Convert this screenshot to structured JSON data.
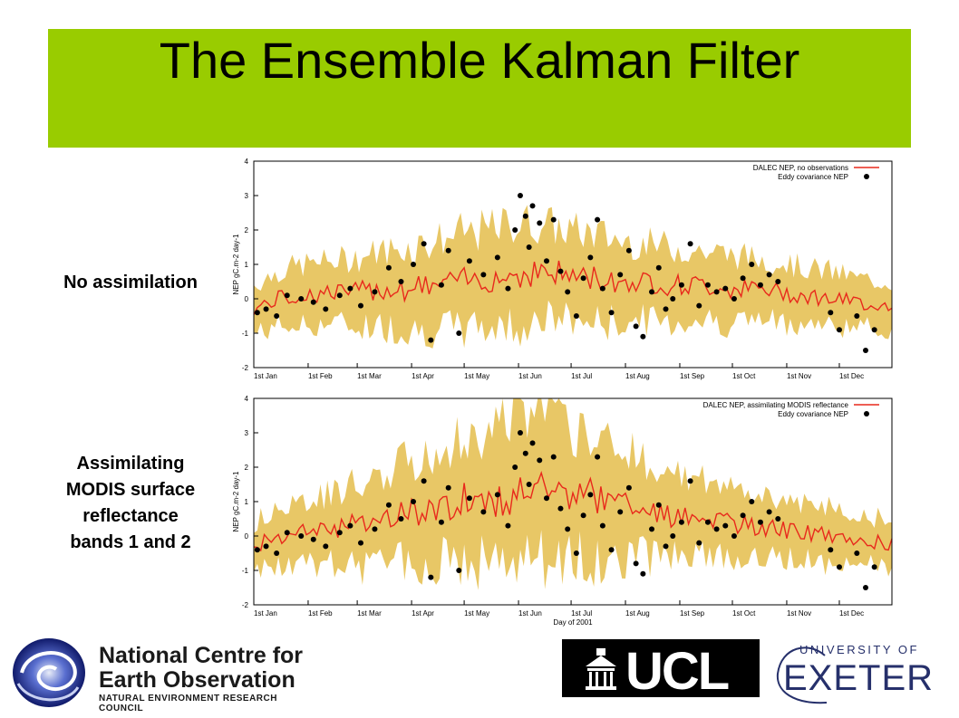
{
  "slide": {
    "title": "The Ensemble Kalman Filter",
    "label_top": "No assimilation",
    "label_bottom_lines": [
      "Assimilating",
      "MODIS surface",
      "reflectance",
      "bands 1 and 2"
    ]
  },
  "chart_data": [
    {
      "type": "line",
      "title": "",
      "ylabel": "NEP gC.m-2 day-1",
      "xlabel": "",
      "ylim": [
        -2,
        4
      ],
      "yticks": [
        "4",
        "3",
        "2",
        "1",
        "0",
        "-1",
        "-2"
      ],
      "xticks": [
        "1st Jan",
        "1st Feb",
        "1st Mar",
        "1st Apr",
        "1st May",
        "1st Jun",
        "1st Jul",
        "1st Aug",
        "1st Sep",
        "1st Oct",
        "1st Nov",
        "1st Dec"
      ],
      "legend": [
        "DALEC NEP, no observations",
        "Eddy covariance NEP"
      ],
      "legend_position": "top-right",
      "colors": {
        "line": "#e8291c",
        "band": "#e8c766",
        "points": "#000000"
      },
      "series": [
        {
          "name": "DALEC NEP, no observations",
          "days": [
            1,
            15,
            30,
            45,
            60,
            75,
            90,
            105,
            120,
            135,
            150,
            165,
            180,
            195,
            210,
            225,
            240,
            255,
            270,
            285,
            300,
            315,
            330,
            345,
            360
          ],
          "values": [
            -0.3,
            0.0,
            0.1,
            0.2,
            0.2,
            0.3,
            0.3,
            0.4,
            0.5,
            0.6,
            0.7,
            0.8,
            0.7,
            0.6,
            0.5,
            0.5,
            0.4,
            0.4,
            0.3,
            0.3,
            0.2,
            0.1,
            0.0,
            -0.1,
            -0.2
          ],
          "band": [
            0.7,
            0.8,
            0.9,
            0.9,
            1.0,
            1.1,
            1.2,
            1.3,
            1.4,
            1.4,
            1.5,
            1.4,
            1.3,
            1.3,
            1.2,
            1.1,
            1.1,
            1.0,
            1.0,
            0.9,
            0.9,
            0.8,
            0.8,
            0.7,
            0.7
          ]
        },
        {
          "name": "Eddy covariance NEP",
          "points": [
            [
              3,
              -0.4
            ],
            [
              8,
              -0.3
            ],
            [
              14,
              -0.5
            ],
            [
              20,
              0.1
            ],
            [
              28,
              0.0
            ],
            [
              35,
              -0.1
            ],
            [
              42,
              -0.3
            ],
            [
              50,
              0.1
            ],
            [
              56,
              0.3
            ],
            [
              62,
              -0.2
            ],
            [
              70,
              0.2
            ],
            [
              78,
              0.9
            ],
            [
              85,
              0.5
            ],
            [
              92,
              1.0
            ],
            [
              98,
              1.6
            ],
            [
              102,
              -1.2
            ],
            [
              108,
              0.4
            ],
            [
              112,
              1.4
            ],
            [
              118,
              -1.0
            ],
            [
              124,
              1.1
            ],
            [
              132,
              0.7
            ],
            [
              140,
              1.2
            ],
            [
              146,
              0.3
            ],
            [
              150,
              2.0
            ],
            [
              153,
              3.0
            ],
            [
              156,
              2.4
            ],
            [
              158,
              1.5
            ],
            [
              160,
              2.7
            ],
            [
              164,
              2.2
            ],
            [
              168,
              1.1
            ],
            [
              172,
              2.3
            ],
            [
              176,
              0.8
            ],
            [
              180,
              0.2
            ],
            [
              185,
              -0.5
            ],
            [
              189,
              0.6
            ],
            [
              193,
              1.2
            ],
            [
              197,
              2.3
            ],
            [
              200,
              0.3
            ],
            [
              205,
              -0.4
            ],
            [
              210,
              0.7
            ],
            [
              215,
              1.4
            ],
            [
              219,
              -0.8
            ],
            [
              223,
              -1.1
            ],
            [
              228,
              0.2
            ],
            [
              232,
              0.9
            ],
            [
              236,
              -0.3
            ],
            [
              240,
              0.0
            ],
            [
              245,
              0.4
            ],
            [
              250,
              1.6
            ],
            [
              255,
              -0.2
            ],
            [
              260,
              0.4
            ],
            [
              265,
              0.2
            ],
            [
              270,
              0.3
            ],
            [
              275,
              0.0
            ],
            [
              280,
              0.6
            ],
            [
              285,
              1.0
            ],
            [
              290,
              0.4
            ],
            [
              295,
              0.7
            ],
            [
              300,
              0.5
            ],
            [
              330,
              -0.4
            ],
            [
              335,
              -0.9
            ],
            [
              345,
              -0.5
            ],
            [
              350,
              -1.5
            ],
            [
              355,
              -0.9
            ]
          ]
        }
      ]
    },
    {
      "type": "line",
      "title": "",
      "ylabel": "NEP gC.m-2 day-1",
      "xlabel": "Day of 2001",
      "ylim": [
        -2,
        4
      ],
      "yticks": [
        "4",
        "3",
        "2",
        "1",
        "0",
        "-1",
        "-2"
      ],
      "xticks": [
        "1st Jan",
        "1st Feb",
        "1st Mar",
        "1st Apr",
        "1st May",
        "1st Jun",
        "1st Jul",
        "1st Aug",
        "1st Sep",
        "1st Oct",
        "1st Nov",
        "1st Dec"
      ],
      "legend": [
        "DALEC NEP, assimilating MODIS reflectance",
        "Eddy covariance NEP"
      ],
      "legend_position": "top-right",
      "colors": {
        "line": "#e8291c",
        "band": "#e8c766",
        "points": "#000000"
      },
      "series": [
        {
          "name": "DALEC NEP, assimilating MODIS reflectance",
          "days": [
            1,
            15,
            30,
            45,
            60,
            75,
            90,
            105,
            120,
            135,
            150,
            165,
            180,
            195,
            210,
            225,
            240,
            255,
            270,
            285,
            300,
            315,
            330,
            345,
            360
          ],
          "values": [
            -0.3,
            0.0,
            0.1,
            0.2,
            0.3,
            0.5,
            0.7,
            0.9,
            1.0,
            1.1,
            1.3,
            1.5,
            1.2,
            1.2,
            1.0,
            0.8,
            0.6,
            0.5,
            0.4,
            0.3,
            0.2,
            0.1,
            0.0,
            -0.1,
            -0.2
          ],
          "band": [
            0.7,
            0.8,
            0.9,
            1.0,
            1.2,
            1.3,
            1.5,
            1.6,
            1.8,
            1.9,
            2.2,
            2.3,
            1.9,
            1.9,
            1.6,
            1.4,
            1.2,
            1.1,
            1.0,
            0.9,
            0.9,
            0.8,
            0.8,
            0.7,
            0.7
          ]
        },
        {
          "name": "Eddy covariance NEP",
          "points": [
            [
              3,
              -0.4
            ],
            [
              8,
              -0.3
            ],
            [
              14,
              -0.5
            ],
            [
              20,
              0.1
            ],
            [
              28,
              0.0
            ],
            [
              35,
              -0.1
            ],
            [
              42,
              -0.3
            ],
            [
              50,
              0.1
            ],
            [
              56,
              0.3
            ],
            [
              62,
              -0.2
            ],
            [
              70,
              0.2
            ],
            [
              78,
              0.9
            ],
            [
              85,
              0.5
            ],
            [
              92,
              1.0
            ],
            [
              98,
              1.6
            ],
            [
              102,
              -1.2
            ],
            [
              108,
              0.4
            ],
            [
              112,
              1.4
            ],
            [
              118,
              -1.0
            ],
            [
              124,
              1.1
            ],
            [
              132,
              0.7
            ],
            [
              140,
              1.2
            ],
            [
              146,
              0.3
            ],
            [
              150,
              2.0
            ],
            [
              153,
              3.0
            ],
            [
              156,
              2.4
            ],
            [
              158,
              1.5
            ],
            [
              160,
              2.7
            ],
            [
              164,
              2.2
            ],
            [
              168,
              1.1
            ],
            [
              172,
              2.3
            ],
            [
              176,
              0.8
            ],
            [
              180,
              0.2
            ],
            [
              185,
              -0.5
            ],
            [
              189,
              0.6
            ],
            [
              193,
              1.2
            ],
            [
              197,
              2.3
            ],
            [
              200,
              0.3
            ],
            [
              205,
              -0.4
            ],
            [
              210,
              0.7
            ],
            [
              215,
              1.4
            ],
            [
              219,
              -0.8
            ],
            [
              223,
              -1.1
            ],
            [
              228,
              0.2
            ],
            [
              232,
              0.9
            ],
            [
              236,
              -0.3
            ],
            [
              240,
              0.0
            ],
            [
              245,
              0.4
            ],
            [
              250,
              1.6
            ],
            [
              255,
              -0.2
            ],
            [
              260,
              0.4
            ],
            [
              265,
              0.2
            ],
            [
              270,
              0.3
            ],
            [
              275,
              0.0
            ],
            [
              280,
              0.6
            ],
            [
              285,
              1.0
            ],
            [
              290,
              0.4
            ],
            [
              295,
              0.7
            ],
            [
              300,
              0.5
            ],
            [
              330,
              -0.4
            ],
            [
              335,
              -0.9
            ],
            [
              345,
              -0.5
            ],
            [
              350,
              -1.5
            ],
            [
              355,
              -0.9
            ]
          ]
        }
      ]
    }
  ],
  "logos": {
    "ncoe": {
      "line1": "National Centre for",
      "line2": "Earth Observation",
      "line3": "NATURAL ENVIRONMENT RESEARCH COUNCIL"
    },
    "ucl": {
      "text": "UCL"
    },
    "exeter": {
      "top": "UNIVERSITY OF",
      "word": "EXETER"
    }
  }
}
